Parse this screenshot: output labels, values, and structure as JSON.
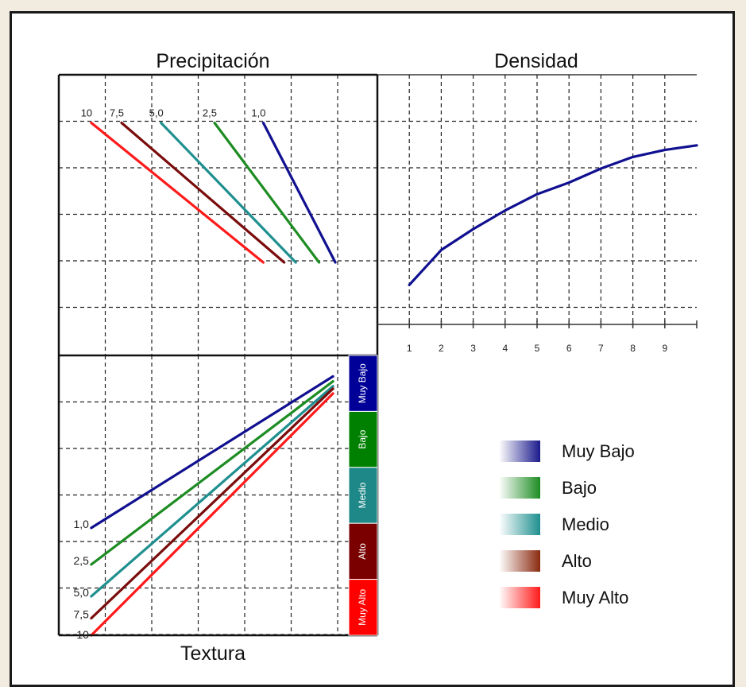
{
  "chart_data": [
    {
      "panel": "precipitacion",
      "type": "line",
      "title": "Precipitación",
      "series": [
        {
          "name": "10",
          "color": "#ff1a1a",
          "points": [
            [
              0.7,
              5.0
            ],
            [
              4.4,
              2.0
            ]
          ]
        },
        {
          "name": "7,5",
          "color": "#7a0c0c",
          "points": [
            [
              1.35,
              5.0
            ],
            [
              4.85,
              2.0
            ]
          ]
        },
        {
          "name": "5,0",
          "color": "#1f8f8f",
          "points": [
            [
              2.2,
              5.0
            ],
            [
              5.1,
              2.0
            ]
          ]
        },
        {
          "name": "2,5",
          "color": "#1d8c22",
          "points": [
            [
              3.35,
              5.0
            ],
            [
              5.6,
              2.0
            ]
          ]
        },
        {
          "name": "1,0",
          "color": "#101090",
          "points": [
            [
              4.4,
              5.0
            ],
            [
              5.95,
              2.0
            ]
          ]
        }
      ]
    },
    {
      "panel": "densidad",
      "type": "line",
      "title": "Densidad",
      "xticks": [
        "1",
        "2",
        "3",
        "4",
        "5",
        "6",
        "7",
        "8",
        "9"
      ],
      "xlim": [
        0,
        10
      ],
      "series": [
        {
          "name": "",
          "color": "#101090",
          "points": [
            [
              1,
              2.0
            ],
            [
              2,
              2.75
            ],
            [
              3,
              3.2
            ],
            [
              4,
              3.6
            ],
            [
              5,
              3.95
            ],
            [
              6,
              4.2
            ],
            [
              7,
              4.5
            ],
            [
              8,
              4.75
            ],
            [
              9,
              4.9
            ],
            [
              10,
              5.0
            ]
          ]
        }
      ]
    },
    {
      "panel": "textura",
      "type": "line",
      "title": "Textura",
      "bands": [
        {
          "label": "Muy Bajo",
          "color": "#000099"
        },
        {
          "label": "Bajo",
          "color": "#008000"
        },
        {
          "label": "Medio",
          "color": "#1e8787"
        },
        {
          "label": "Alto",
          "color": "#7a0000"
        },
        {
          "label": "Muy Alto",
          "color": "#ff0000"
        }
      ],
      "series": [
        {
          "name": "1,0",
          "color": "#101090",
          "points": [
            [
              0,
              2.2
            ],
            [
              5.2,
              5.3
            ]
          ]
        },
        {
          "name": "2,5",
          "color": "#1d8c22",
          "points": [
            [
              0,
              1.45
            ],
            [
              5.2,
              5.2
            ]
          ]
        },
        {
          "name": "5,0",
          "color": "#1f8f8f",
          "points": [
            [
              0,
              0.8
            ],
            [
              5.2,
              5.1
            ]
          ]
        },
        {
          "name": "7,5",
          "color": "#7a0c0c",
          "points": [
            [
              0,
              0.35
            ],
            [
              5.2,
              5.05
            ]
          ]
        },
        {
          "name": "10",
          "color": "#ff1a1a",
          "points": [
            [
              0,
              0.0
            ],
            [
              5.2,
              4.95
            ]
          ]
        }
      ]
    }
  ],
  "legend": [
    {
      "label": "Muy Bajo",
      "color": "#1a1a8c"
    },
    {
      "label": "Bajo",
      "color": "#1d8c22"
    },
    {
      "label": "Medio",
      "color": "#1f8f8f"
    },
    {
      "label": "Alto",
      "color": "#8a2a10"
    },
    {
      "label": "Muy Alto",
      "color": "#ff1a1a"
    }
  ]
}
